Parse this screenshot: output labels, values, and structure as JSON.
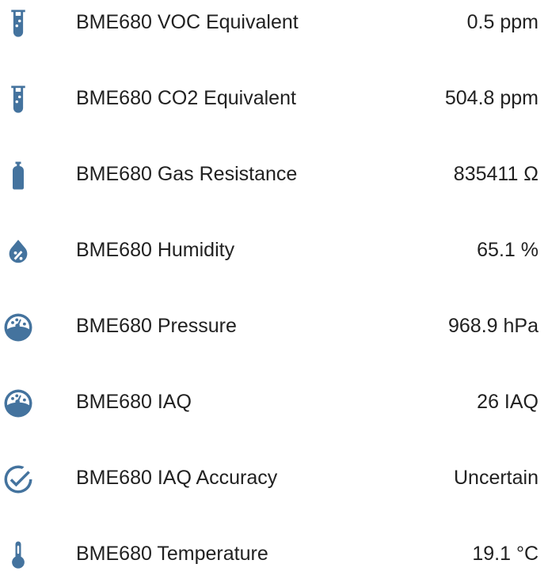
{
  "icon_color": "#44739e",
  "entities": [
    {
      "icon": "test-tube-icon",
      "name": "BME680 VOC Equivalent",
      "value": "0.5 ppm"
    },
    {
      "icon": "test-tube-icon",
      "name": "BME680 CO2 Equivalent",
      "value": "504.8 ppm"
    },
    {
      "icon": "gas-cylinder-icon",
      "name": "BME680 Gas Resistance",
      "value": "835411 Ω"
    },
    {
      "icon": "water-percent-icon",
      "name": "BME680 Humidity",
      "value": "65.1 %"
    },
    {
      "icon": "gauge-icon",
      "name": "BME680 Pressure",
      "value": "968.9 hPa"
    },
    {
      "icon": "gauge-icon",
      "name": "BME680 IAQ",
      "value": "26 IAQ"
    },
    {
      "icon": "check-circle-outline-icon",
      "name": "BME680 IAQ Accuracy",
      "value": "Uncertain"
    },
    {
      "icon": "thermometer-icon",
      "name": "BME680 Temperature",
      "value": "19.1 °C"
    }
  ]
}
